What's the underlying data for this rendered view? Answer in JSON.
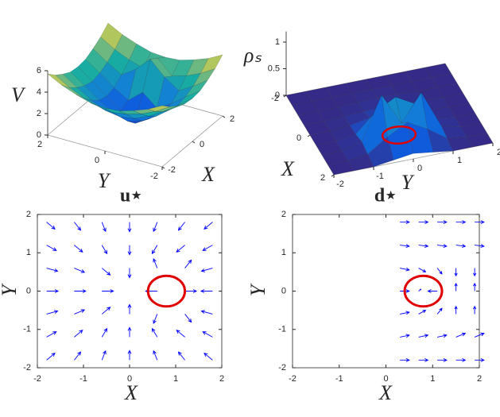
{
  "chart_data": [
    {
      "type": "surface",
      "zlabel": "V",
      "xlabel": "X",
      "ylabel": "Y",
      "colormap": "parula",
      "x": [
        -2,
        -1.5,
        -1,
        -0.5,
        0,
        0.5,
        1,
        1.5,
        2
      ],
      "y": [
        -2,
        -1.5,
        -1,
        -0.5,
        0,
        0.5,
        1,
        1.5,
        2
      ],
      "z": [
        [
          5.7,
          5.0,
          4.5,
          4.1,
          4.0,
          4.1,
          4.5,
          5.0,
          5.7
        ],
        [
          5.0,
          4.2,
          3.6,
          3.2,
          3.0,
          3.2,
          3.6,
          4.2,
          5.0
        ],
        [
          4.5,
          3.6,
          2.8,
          2.2,
          2.0,
          2.2,
          2.8,
          3.6,
          4.5
        ],
        [
          4.1,
          3.2,
          2.2,
          1.4,
          1.0,
          1.4,
          2.2,
          3.2,
          4.1
        ],
        [
          4.0,
          3.0,
          2.0,
          1.0,
          0.2,
          1.0,
          2.0,
          3.0,
          4.0
        ],
        [
          4.1,
          3.2,
          2.2,
          1.4,
          2.5,
          1.4,
          2.2,
          3.2,
          4.1
        ],
        [
          4.5,
          3.6,
          2.8,
          3.7,
          5.0,
          3.7,
          2.8,
          3.6,
          4.5
        ],
        [
          5.0,
          4.2,
          3.6,
          3.2,
          4.5,
          3.2,
          3.6,
          4.2,
          5.0
        ],
        [
          5.7,
          5.0,
          4.5,
          4.1,
          4.0,
          4.1,
          4.5,
          5.0,
          5.7
        ]
      ],
      "xlim": [
        -2,
        2
      ],
      "ylim": [
        -2,
        2
      ],
      "zlim": [
        0,
        6
      ],
      "xticks": [
        -2,
        0,
        2
      ],
      "yticks": [
        -2,
        0,
        2
      ],
      "zticks": [
        0,
        2,
        4,
        6
      ]
    },
    {
      "type": "surface",
      "zlabel": "ρₛ",
      "xlabel": "X",
      "ylabel": "Y",
      "colormap": "parula",
      "x": [
        -2,
        -1.5,
        -1,
        -0.5,
        0,
        0.5,
        1,
        1.5,
        2
      ],
      "y": [
        -2,
        -1.5,
        -1,
        -0.5,
        0,
        0.5,
        1,
        1.5,
        2
      ],
      "z": [
        [
          0,
          0,
          0,
          0,
          0,
          0,
          0,
          0,
          0
        ],
        [
          0,
          0,
          0,
          0,
          0,
          0,
          0,
          0,
          0
        ],
        [
          0,
          0,
          0,
          0.02,
          0.03,
          0.02,
          0,
          0,
          0
        ],
        [
          0,
          0,
          0.02,
          0.03,
          0.05,
          0.03,
          0.02,
          0,
          0
        ],
        [
          0,
          0,
          0.03,
          0.1,
          0.2,
          0.1,
          0.03,
          0,
          0
        ],
        [
          0,
          0,
          0.05,
          0.4,
          0.6,
          0.4,
          0.05,
          0,
          0
        ],
        [
          0,
          0,
          0.1,
          0.9,
          0.3,
          0.8,
          0.1,
          0,
          0
        ],
        [
          0,
          0,
          0.05,
          0.3,
          0.5,
          0.3,
          0.05,
          0,
          0
        ],
        [
          0,
          0,
          0,
          0.05,
          0.1,
          0.05,
          0,
          0,
          0
        ]
      ],
      "xlim": [
        -2,
        2
      ],
      "ylim": [
        -2,
        2
      ],
      "zlim": [
        0,
        1.2
      ],
      "xticks": [
        -2,
        0,
        2
      ],
      "yticks": [
        -2,
        -1,
        0,
        1,
        2
      ],
      "zticks": [
        0,
        0.5,
        1
      ],
      "circle": {
        "center": [
          0.8,
          0
        ],
        "radius": 0.4,
        "color": "#e00000"
      }
    },
    {
      "type": "quiver",
      "title": "u⋆",
      "xlabel": "X",
      "ylabel": "Y",
      "color": "#0000ff",
      "x": [
        -1.8,
        -1.2,
        -0.6,
        0,
        0.6,
        1.2,
        1.8,
        -1.8,
        -1.2,
        -0.6,
        0,
        0.6,
        1.2,
        1.8,
        -1.8,
        -1.2,
        -0.6,
        0,
        0.6,
        1.2,
        1.8,
        -1.8,
        -1.2,
        -0.6,
        0,
        0.6,
        1.2,
        1.8,
        -1.8,
        -1.2,
        -0.6,
        0,
        0.6,
        1.2,
        1.8,
        -1.8,
        -1.2,
        -0.6,
        0,
        0.6,
        1.2,
        1.8,
        -1.8,
        -1.2,
        -0.6,
        0,
        0.6,
        1.2,
        1.8
      ],
      "y": [
        1.8,
        1.8,
        1.8,
        1.8,
        1.8,
        1.8,
        1.8,
        1.2,
        1.2,
        1.2,
        1.2,
        1.2,
        1.2,
        1.2,
        0.6,
        0.6,
        0.6,
        0.6,
        0.6,
        0.6,
        0.6,
        0,
        0,
        0,
        0,
        0,
        0,
        0,
        -0.6,
        -0.6,
        -0.6,
        -0.6,
        -0.6,
        -0.6,
        -0.6,
        -1.2,
        -1.2,
        -1.2,
        -1.2,
        -1.2,
        -1.2,
        -1.2,
        -1.8,
        -1.8,
        -1.8,
        -1.8,
        -1.8,
        -1.8,
        -1.8
      ],
      "u": [
        0.18,
        0.14,
        0.08,
        0,
        -0.08,
        -0.14,
        -0.18,
        0.21,
        0.18,
        0.11,
        0,
        -0.11,
        -0.18,
        -0.21,
        0.24,
        0.22,
        0.18,
        0,
        -0.08,
        0.14,
        -0.24,
        0.25,
        0.25,
        0.25,
        0,
        -0.25,
        0.25,
        -0.25,
        0.24,
        0.22,
        0.18,
        0,
        -0.08,
        0.14,
        -0.24,
        0.21,
        0.18,
        0.11,
        0,
        -0.11,
        -0.18,
        -0.21,
        0.18,
        0.14,
        0.08,
        0,
        -0.08,
        -0.14,
        -0.18
      ],
      "v": [
        -0.18,
        -0.21,
        -0.24,
        -0.25,
        -0.24,
        -0.21,
        -0.18,
        -0.14,
        -0.18,
        -0.22,
        -0.25,
        -0.22,
        -0.18,
        -0.14,
        -0.08,
        -0.11,
        -0.18,
        -0.25,
        0.24,
        0.21,
        -0.08,
        0,
        0,
        0,
        0,
        0,
        0,
        0,
        0.08,
        0.11,
        0.18,
        0.25,
        -0.24,
        -0.21,
        0.08,
        0.14,
        0.18,
        0.22,
        0.25,
        0.22,
        0.18,
        0.14,
        0.18,
        0.21,
        0.24,
        0.25,
        0.24,
        0.21,
        0.18
      ],
      "xlim": [
        -2,
        2
      ],
      "ylim": [
        -2,
        2
      ],
      "xticks": [
        -2,
        -1,
        0,
        1,
        2
      ],
      "yticks": [
        -2,
        -1,
        0,
        1,
        2
      ],
      "circle": {
        "center": [
          0.8,
          0
        ],
        "radius": 0.4,
        "color": "#e00000"
      }
    },
    {
      "type": "quiver",
      "title": "d⋆",
      "xlabel": "X",
      "ylabel": "Y",
      "color": "#0000ff",
      "x": [
        0.3,
        0.7,
        1.1,
        1.5,
        1.9,
        0.3,
        0.7,
        1.1,
        1.5,
        1.9,
        0.3,
        0.7,
        1.1,
        1.5,
        1.9,
        0.3,
        0.7,
        1.1,
        1.5,
        1.9,
        0.3,
        0.7,
        1.1,
        1.5,
        1.9,
        0.3,
        0.7,
        1.1,
        1.5,
        1.9,
        0.3,
        0.7,
        1.1,
        1.5,
        1.9
      ],
      "y": [
        1.8,
        1.8,
        1.8,
        1.8,
        1.8,
        1.2,
        1.2,
        1.2,
        1.2,
        1.2,
        0.6,
        0.6,
        0.6,
        0.6,
        0.6,
        0,
        0,
        0,
        0,
        0,
        -0.6,
        -0.6,
        -0.6,
        -0.6,
        -0.6,
        -1.2,
        -1.2,
        -1.2,
        -1.2,
        -1.2,
        -1.8,
        -1.8,
        -1.8,
        -1.8,
        -1.8
      ],
      "u": [
        0.2,
        0.2,
        0.2,
        0.2,
        0.2,
        0.2,
        0.2,
        0.2,
        0.2,
        0.2,
        0.2,
        0.15,
        0.1,
        0,
        0,
        0.2,
        0.05,
        -0.2,
        0,
        0,
        0.2,
        0.15,
        0.1,
        0,
        0,
        0.2,
        0.2,
        0.2,
        0.2,
        0.2,
        0.2,
        0.2,
        0.2,
        0.2,
        0.2
      ],
      "v": [
        0,
        0,
        0,
        0,
        0,
        -0.03,
        -0.03,
        -0.03,
        -0.03,
        -0.03,
        -0.05,
        -0.1,
        -0.15,
        -0.2,
        -0.2,
        0,
        0.05,
        0,
        0.2,
        0.2,
        0.05,
        0.1,
        0.15,
        0.2,
        0.2,
        0.05,
        0.05,
        0.05,
        0.1,
        0.1,
        0,
        0,
        0,
        0,
        0
      ],
      "xlim": [
        -2,
        2
      ],
      "ylim": [
        -2,
        2
      ],
      "xticks": [
        -2,
        -1,
        0,
        1,
        2
      ],
      "yticks": [
        -2,
        -1,
        0,
        1,
        2
      ],
      "circle": {
        "center": [
          0.8,
          0
        ],
        "radius": 0.4,
        "color": "#e00000"
      }
    }
  ]
}
